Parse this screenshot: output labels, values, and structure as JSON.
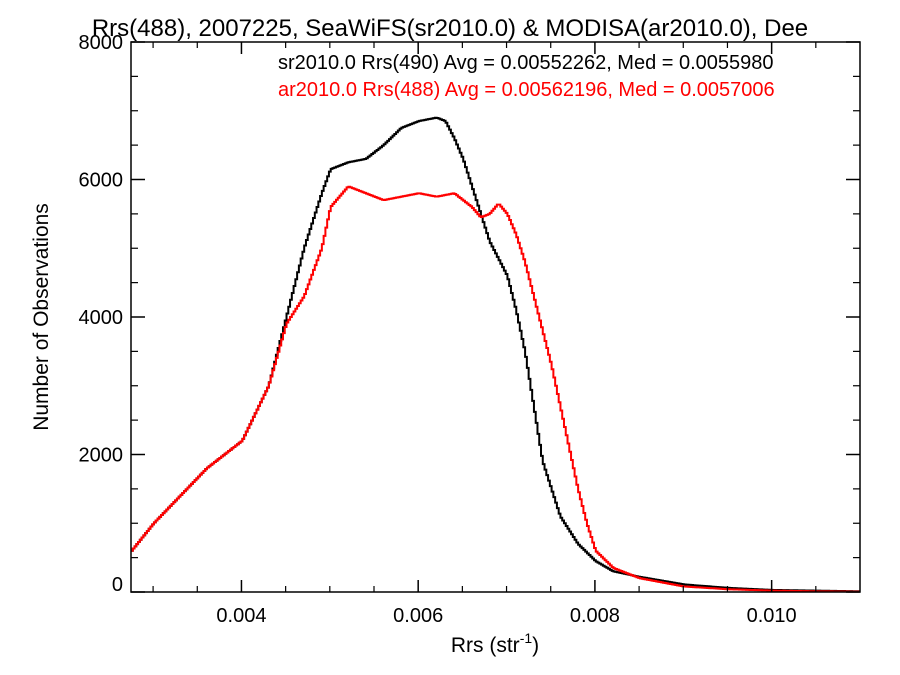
{
  "chart_data": {
    "type": "line",
    "title": "Rrs(488), 2007225, SeaWiFS(sr2010.0) & MODISA(ar2010.0), Dee",
    "xlabel": "Rrs (str",
    "xlabel_sup": "-1",
    "xlabel_end": ")",
    "ylabel": "Number of Observations",
    "xlim": [
      0.00275,
      0.011
    ],
    "ylim": [
      0,
      8000
    ],
    "x_ticks": [
      0.004,
      0.006,
      0.008,
      0.01
    ],
    "x_tick_labels": [
      "0.004",
      "0.006",
      "0.008",
      "0.010"
    ],
    "y_ticks": [
      0,
      2000,
      4000,
      6000,
      8000
    ],
    "y_tick_labels": [
      "0",
      "2000",
      "4000",
      "6000",
      "8000"
    ],
    "step_plot": true,
    "legend_position": "top-right",
    "series": [
      {
        "name": "sr2010.0 Rrs(490) Avg = 0.00552262, Med = 0.0055980",
        "color": "#000000",
        "x": [
          0.00275,
          0.003,
          0.0033,
          0.0036,
          0.004,
          0.0043,
          0.0045,
          0.0047,
          0.0049,
          0.005,
          0.0052,
          0.0054,
          0.0056,
          0.0058,
          0.006,
          0.0062,
          0.0063,
          0.0064,
          0.0065,
          0.0066,
          0.0067,
          0.0068,
          0.007,
          0.0071,
          0.0072,
          0.0073,
          0.0074,
          0.0076,
          0.0078,
          0.008,
          0.0082,
          0.0085,
          0.009,
          0.0095,
          0.01,
          0.0105,
          0.011
        ],
        "values": [
          600,
          1000,
          1400,
          1800,
          2200,
          3000,
          4000,
          5000,
          5800,
          6150,
          6250,
          6300,
          6500,
          6750,
          6850,
          6900,
          6850,
          6600,
          6300,
          5900,
          5500,
          5100,
          4600,
          4100,
          3500,
          2700,
          1900,
          1100,
          700,
          450,
          300,
          220,
          110,
          60,
          30,
          20,
          10
        ]
      },
      {
        "name": "ar2010.0 Rrs(488) Avg = 0.00562196, Med = 0.0057006",
        "color": "#ff0000",
        "x": [
          0.00275,
          0.003,
          0.0033,
          0.0036,
          0.004,
          0.0043,
          0.0045,
          0.0047,
          0.0049,
          0.005,
          0.0052,
          0.0054,
          0.0056,
          0.0058,
          0.006,
          0.0062,
          0.0064,
          0.0066,
          0.0067,
          0.0068,
          0.0069,
          0.007,
          0.0071,
          0.0072,
          0.0073,
          0.0074,
          0.0075,
          0.0076,
          0.0077,
          0.0078,
          0.0079,
          0.008,
          0.0082,
          0.0085,
          0.009,
          0.0095,
          0.01,
          0.0105,
          0.011
        ],
        "values": [
          600,
          1000,
          1400,
          1800,
          2200,
          3000,
          3900,
          4300,
          5000,
          5600,
          5900,
          5800,
          5700,
          5750,
          5800,
          5750,
          5800,
          5600,
          5450,
          5500,
          5650,
          5500,
          5200,
          4800,
          4300,
          3800,
          3300,
          2700,
          2100,
          1500,
          1000,
          600,
          350,
          200,
          80,
          40,
          20,
          10,
          5
        ]
      }
    ]
  }
}
